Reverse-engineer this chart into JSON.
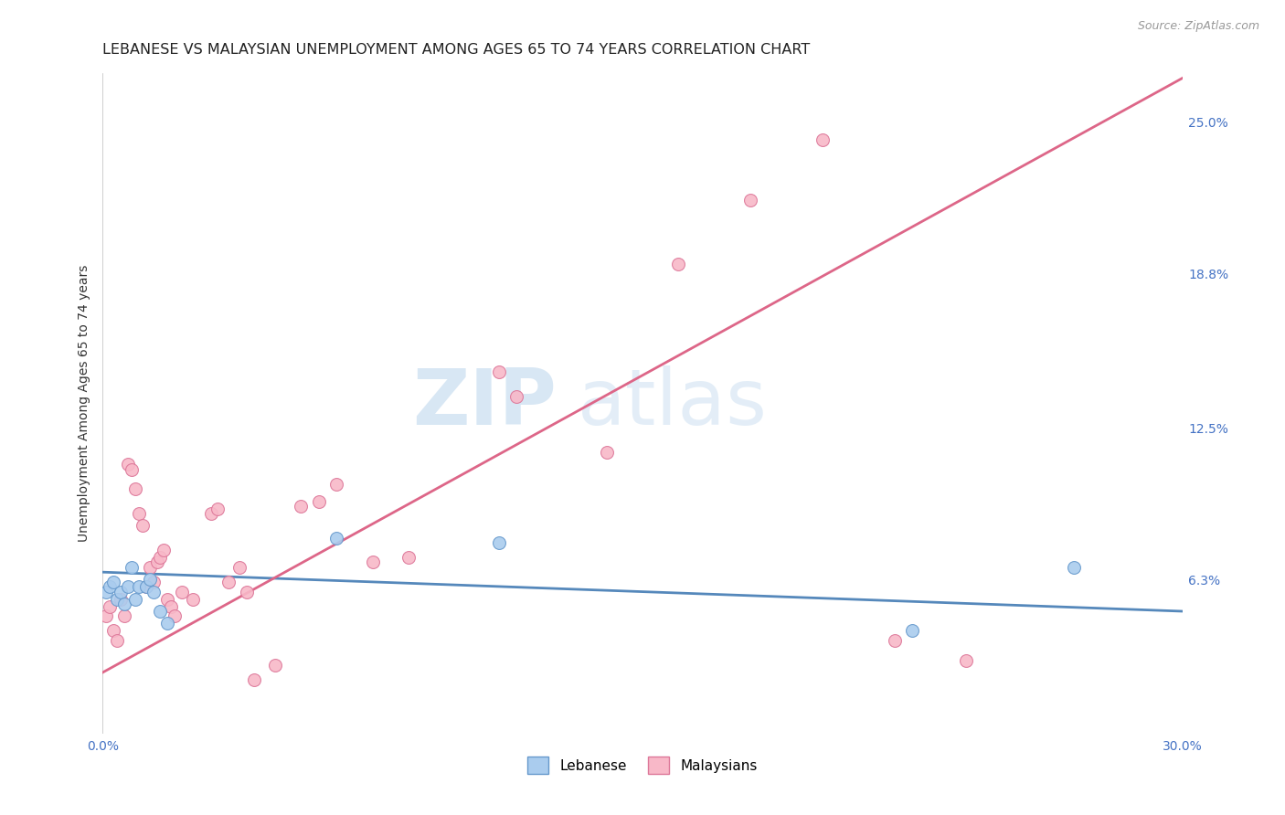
{
  "title": "LEBANESE VS MALAYSIAN UNEMPLOYMENT AMONG AGES 65 TO 74 YEARS CORRELATION CHART",
  "source": "Source: ZipAtlas.com",
  "ylabel": "Unemployment Among Ages 65 to 74 years",
  "xlim": [
    0.0,
    0.3
  ],
  "ylim": [
    0.0,
    0.27
  ],
  "xtick_labels": [
    "0.0%",
    "30.0%"
  ],
  "xtick_positions": [
    0.0,
    0.3
  ],
  "ytick_labels": [
    "6.3%",
    "12.5%",
    "18.8%",
    "25.0%"
  ],
  "ytick_positions": [
    0.063,
    0.125,
    0.188,
    0.25
  ],
  "watermark_zip": "ZIP",
  "watermark_atlas": "atlas",
  "lebanese_x": [
    0.001,
    0.002,
    0.003,
    0.004,
    0.005,
    0.006,
    0.007,
    0.008,
    0.009,
    0.01,
    0.012,
    0.013,
    0.014,
    0.016,
    0.018,
    0.065,
    0.11,
    0.225,
    0.27
  ],
  "lebanese_y": [
    0.058,
    0.06,
    0.062,
    0.055,
    0.058,
    0.053,
    0.06,
    0.068,
    0.055,
    0.06,
    0.06,
    0.063,
    0.058,
    0.05,
    0.045,
    0.08,
    0.078,
    0.042,
    0.068
  ],
  "malaysian_x": [
    0.001,
    0.002,
    0.003,
    0.004,
    0.005,
    0.006,
    0.007,
    0.008,
    0.009,
    0.01,
    0.011,
    0.012,
    0.013,
    0.014,
    0.015,
    0.016,
    0.017,
    0.018,
    0.019,
    0.02,
    0.022,
    0.025,
    0.03,
    0.032,
    0.035,
    0.038,
    0.04,
    0.042,
    0.048,
    0.055,
    0.06,
    0.065,
    0.075,
    0.085,
    0.11,
    0.115,
    0.14,
    0.16,
    0.18,
    0.2,
    0.22,
    0.24
  ],
  "malaysian_y": [
    0.048,
    0.052,
    0.042,
    0.038,
    0.055,
    0.048,
    0.11,
    0.108,
    0.1,
    0.09,
    0.085,
    0.06,
    0.068,
    0.062,
    0.07,
    0.072,
    0.075,
    0.055,
    0.052,
    0.048,
    0.058,
    0.055,
    0.09,
    0.092,
    0.062,
    0.068,
    0.058,
    0.022,
    0.028,
    0.093,
    0.095,
    0.102,
    0.07,
    0.072,
    0.148,
    0.138,
    0.115,
    0.192,
    0.218,
    0.243,
    0.038,
    0.03
  ],
  "blue_line_x": [
    0.0,
    0.3
  ],
  "blue_line_y": [
    0.066,
    0.05
  ],
  "pink_line_x": [
    0.0,
    0.3
  ],
  "pink_line_y": [
    0.025,
    0.268
  ],
  "lebanese_color": "#aaccee",
  "malaysian_color": "#f8b8c8",
  "lebanese_edge": "#6699cc",
  "malaysian_edge": "#dd7799",
  "grid_color": "#dddddd",
  "background_color": "#ffffff",
  "title_fontsize": 11.5,
  "axis_label_fontsize": 10,
  "tick_fontsize": 10,
  "legend_fontsize": 11,
  "marker_size": 100
}
